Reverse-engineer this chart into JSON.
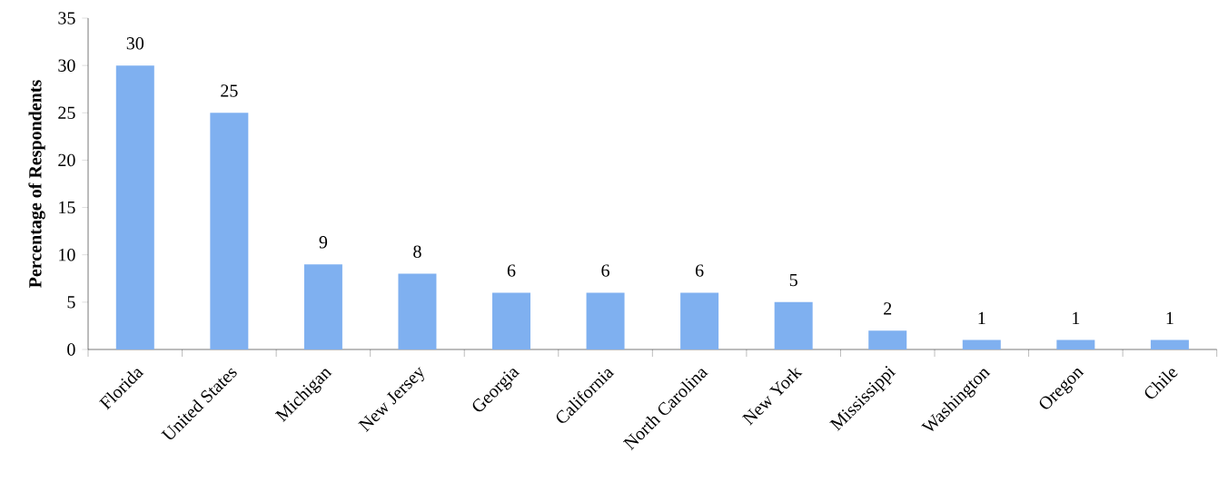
{
  "chart_data": {
    "type": "bar",
    "ylabel": "Percentage of Respondents",
    "categories": [
      "Florida",
      "United States",
      "Michigan",
      "New Jersey",
      "Georgia",
      "California",
      "North Carolina",
      "New York",
      "Mississippi",
      "Washington",
      "Oregon",
      "Chile"
    ],
    "values": [
      30,
      25,
      9,
      8,
      6,
      6,
      6,
      5,
      2,
      1,
      1,
      1
    ],
    "color": "#7fb0f0",
    "ylim": [
      0,
      35
    ],
    "yticks": [
      0,
      5,
      10,
      15,
      20,
      25,
      30,
      35
    ],
    "data_labels": true
  }
}
